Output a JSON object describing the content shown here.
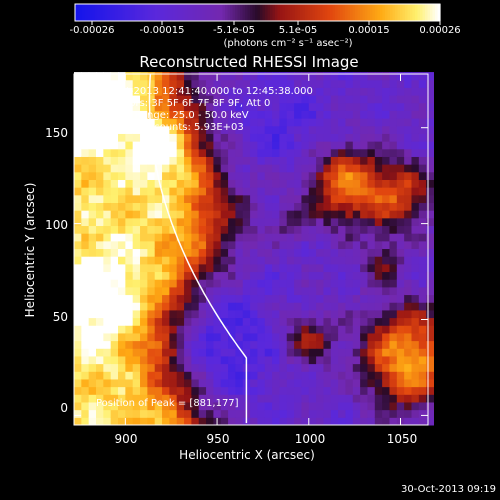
{
  "colorbar": {
    "tick_labels": [
      "-0.00026",
      "-0.00015",
      "-5.1e-05",
      "5.1e-05",
      "0.00015",
      "0.00026"
    ],
    "units": "(photons cm⁻² s⁻¹ asec⁻²)",
    "range": [
      -0.00026,
      0.00026
    ]
  },
  "chart_data": {
    "type": "heatmap",
    "title": "Reconstructed RHESSI Image",
    "xlabel": "Heliocentric X (arcsec)",
    "ylabel": "Heliocentric Y (arcsec)",
    "xlim": [
      872,
      1065
    ],
    "ylim": [
      -5,
      178
    ],
    "x_ticks": [
      "900",
      "950",
      "1000",
      "1050"
    ],
    "y_ticks": [
      "0",
      "50",
      "100",
      "150"
    ],
    "annotations": [
      "30-Oct-2013 12:41:40.000 to 12:45:38.000",
      "Detectors: 3F 5F 6F 7F 8F 9F, Att 0",
      "Energy Range: 25.0 - 50.0 keV",
      "Clean    Total counts: 5.93E+03"
    ],
    "peak_label": "Position of Peak = [881,177]",
    "peak_position": [
      881,
      177
    ],
    "limb": true
  },
  "timestamp": "30-Oct-2013 09:19"
}
